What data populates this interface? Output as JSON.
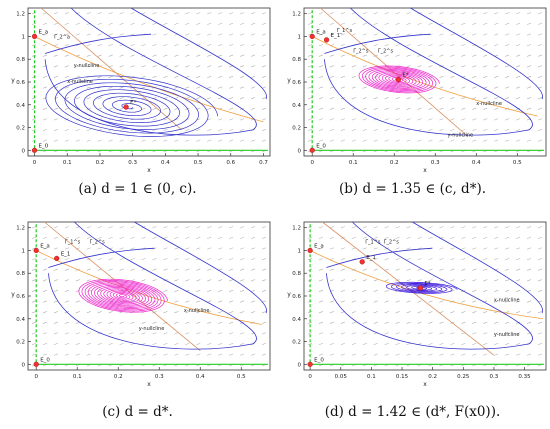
{
  "chart_data": [
    {
      "type": "scatter",
      "caption": "(a) d = 1 ∈ (0, c).",
      "xlabel": "x",
      "ylabel": "y",
      "xlim": [
        -0.02,
        0.72
      ],
      "ylim": [
        -0.05,
        1.25
      ],
      "xticks": [
        0,
        0.1,
        0.2,
        0.3,
        0.4,
        0.5,
        0.6,
        0.7
      ],
      "yticks": [
        0,
        0.2,
        0.4,
        0.6,
        0.8,
        1,
        1.2
      ],
      "x_nullcline": [
        [
          0.0,
          1.0
        ],
        [
          0.7,
          0.25
        ]
      ],
      "y_nullcline": [
        [
          0.02,
          1.25
        ],
        [
          0.45,
          0.18
        ]
      ],
      "equilibria": [
        {
          "label": "E_0",
          "x": 0,
          "y": 0
        },
        {
          "label": "E_a",
          "x": 0,
          "y": 1
        },
        {
          "label": "E*",
          "x": 0.28,
          "y": 0.38
        }
      ],
      "annotations": [
        {
          "text": "y-nullcline",
          "x": 0.12,
          "y": 0.73
        },
        {
          "text": "x-nullcline",
          "x": 0.1,
          "y": 0.59
        },
        {
          "text": "Γ_2^a",
          "x": 0.06,
          "y": 0.98
        }
      ],
      "trajectory_note": "spiral converging to coexistence equilibrium",
      "spiral": {
        "cx": 0.29,
        "cy": 0.38,
        "rx_max": 0.27,
        "ry_max": 0.32,
        "turns": 9
      },
      "colors": {
        "traj": "#3333cc",
        "dense": "#3333cc",
        "x_null": "#f0a040",
        "y_null": "#d89060",
        "axis_line": "#22cc22",
        "eq": "#ee3333"
      }
    },
    {
      "type": "scatter",
      "caption": "(b) d = 1.35 ∈ (c, d*).",
      "xlabel": "x",
      "ylabel": "y",
      "xlim": [
        -0.02,
        0.57
      ],
      "ylim": [
        -0.05,
        1.25
      ],
      "xticks": [
        0,
        0.1,
        0.2,
        0.3,
        0.4,
        0.5
      ],
      "yticks": [
        0,
        0.2,
        0.4,
        0.6,
        0.8,
        1,
        1.2
      ],
      "x_nullcline": [
        [
          0.0,
          1.0
        ],
        [
          0.55,
          0.3
        ]
      ],
      "y_nullcline": [
        [
          0.02,
          1.25
        ],
        [
          0.38,
          0.12
        ]
      ],
      "equilibria": [
        {
          "label": "E_0",
          "x": 0,
          "y": 0
        },
        {
          "label": "E_a",
          "x": 0,
          "y": 1
        },
        {
          "label": "E_1",
          "x": 0.035,
          "y": 0.97
        },
        {
          "label": "E*",
          "x": 0.21,
          "y": 0.62
        }
      ],
      "annotations": [
        {
          "text": "x-nullcline",
          "x": 0.4,
          "y": 0.4
        },
        {
          "text": "y-nullcline",
          "x": 0.33,
          "y": 0.12
        },
        {
          "text": "Γ_1^s",
          "x": 0.06,
          "y": 1.04
        },
        {
          "text": "Γ_2^s",
          "x": 0.1,
          "y": 0.86
        },
        {
          "text": "Γ_2^s",
          "x": 0.16,
          "y": 0.86
        }
      ],
      "spiral": {
        "cx": 0.21,
        "cy": 0.62,
        "rx_max": 0.1,
        "ry_max": 0.14,
        "turns": 12
      },
      "colors": {
        "traj": "#3333cc",
        "dense": "#ee22cc",
        "x_null": "#f0a040",
        "y_null": "#d89060",
        "axis_line": "#22cc22",
        "eq": "#ee3333"
      }
    },
    {
      "type": "scatter",
      "caption": "(c) d = d*.",
      "xlabel": "x",
      "ylabel": "y",
      "xlim": [
        -0.02,
        0.57
      ],
      "ylim": [
        -0.05,
        1.25
      ],
      "xticks": [
        0,
        0.1,
        0.2,
        0.3,
        0.4,
        0.5
      ],
      "yticks": [
        0,
        0.2,
        0.4,
        0.6,
        0.8,
        1,
        1.2
      ],
      "x_nullcline": [
        [
          0.0,
          1.0
        ],
        [
          0.55,
          0.35
        ]
      ],
      "y_nullcline": [
        [
          0.02,
          1.25
        ],
        [
          0.4,
          0.12
        ]
      ],
      "equilibria": [
        {
          "label": "E_0",
          "x": 0,
          "y": 0
        },
        {
          "label": "E_a",
          "x": 0,
          "y": 1
        },
        {
          "label": "E_1",
          "x": 0.05,
          "y": 0.93
        }
      ],
      "annotations": [
        {
          "text": "x-nullcline",
          "x": 0.36,
          "y": 0.46
        },
        {
          "text": "y-nullcline",
          "x": 0.25,
          "y": 0.3
        },
        {
          "text": "Γ_1^s",
          "x": 0.07,
          "y": 1.06
        },
        {
          "text": "Γ_2^s",
          "x": 0.13,
          "y": 1.06
        }
      ],
      "spiral": {
        "cx": 0.21,
        "cy": 0.6,
        "rx_max": 0.11,
        "ry_max": 0.17,
        "turns": 14
      },
      "colors": {
        "traj": "#3333cc",
        "dense": "#ee22cc",
        "x_null": "#f0a040",
        "y_null": "#d89060",
        "axis_line": "#22cc22",
        "eq": "#ee3333"
      }
    },
    {
      "type": "scatter",
      "caption": "(d) d = 1.42 ∈ (d*, F(x0)).",
      "xlabel": "x",
      "ylabel": "y",
      "xlim": [
        -0.01,
        0.385
      ],
      "ylim": [
        -0.05,
        1.25
      ],
      "xticks": [
        0,
        0.05,
        0.1,
        0.15,
        0.2,
        0.25,
        0.3,
        0.35
      ],
      "yticks": [
        0,
        0.2,
        0.4,
        0.6,
        0.8,
        1,
        1.2
      ],
      "x_nullcline": [
        [
          0.0,
          1.0
        ],
        [
          0.38,
          0.4
        ]
      ],
      "y_nullcline": [
        [
          0.02,
          1.25
        ],
        [
          0.3,
          0.08
        ]
      ],
      "equilibria": [
        {
          "label": "E_0",
          "x": 0,
          "y": 0
        },
        {
          "label": "E_a",
          "x": 0,
          "y": 1
        },
        {
          "label": "E_1",
          "x": 0.085,
          "y": 0.9
        },
        {
          "label": "E*",
          "x": 0.18,
          "y": 0.67
        }
      ],
      "annotations": [
        {
          "text": "x-nullcline",
          "x": 0.3,
          "y": 0.55
        },
        {
          "text": "y-nullcline",
          "x": 0.3,
          "y": 0.25
        },
        {
          "text": "Γ_1^s",
          "x": 0.09,
          "y": 1.06
        },
        {
          "text": "Γ_2^s",
          "x": 0.12,
          "y": 1.06
        }
      ],
      "spiral": {
        "cx": 0.18,
        "cy": 0.67,
        "rx_max": 0.06,
        "ry_max": 0.06,
        "turns": 7
      },
      "colors": {
        "traj": "#3333cc",
        "dense": "#4422dd",
        "x_null": "#f0a040",
        "y_null": "#d89060",
        "axis_line": "#22cc22",
        "eq": "#ee3333"
      }
    }
  ]
}
